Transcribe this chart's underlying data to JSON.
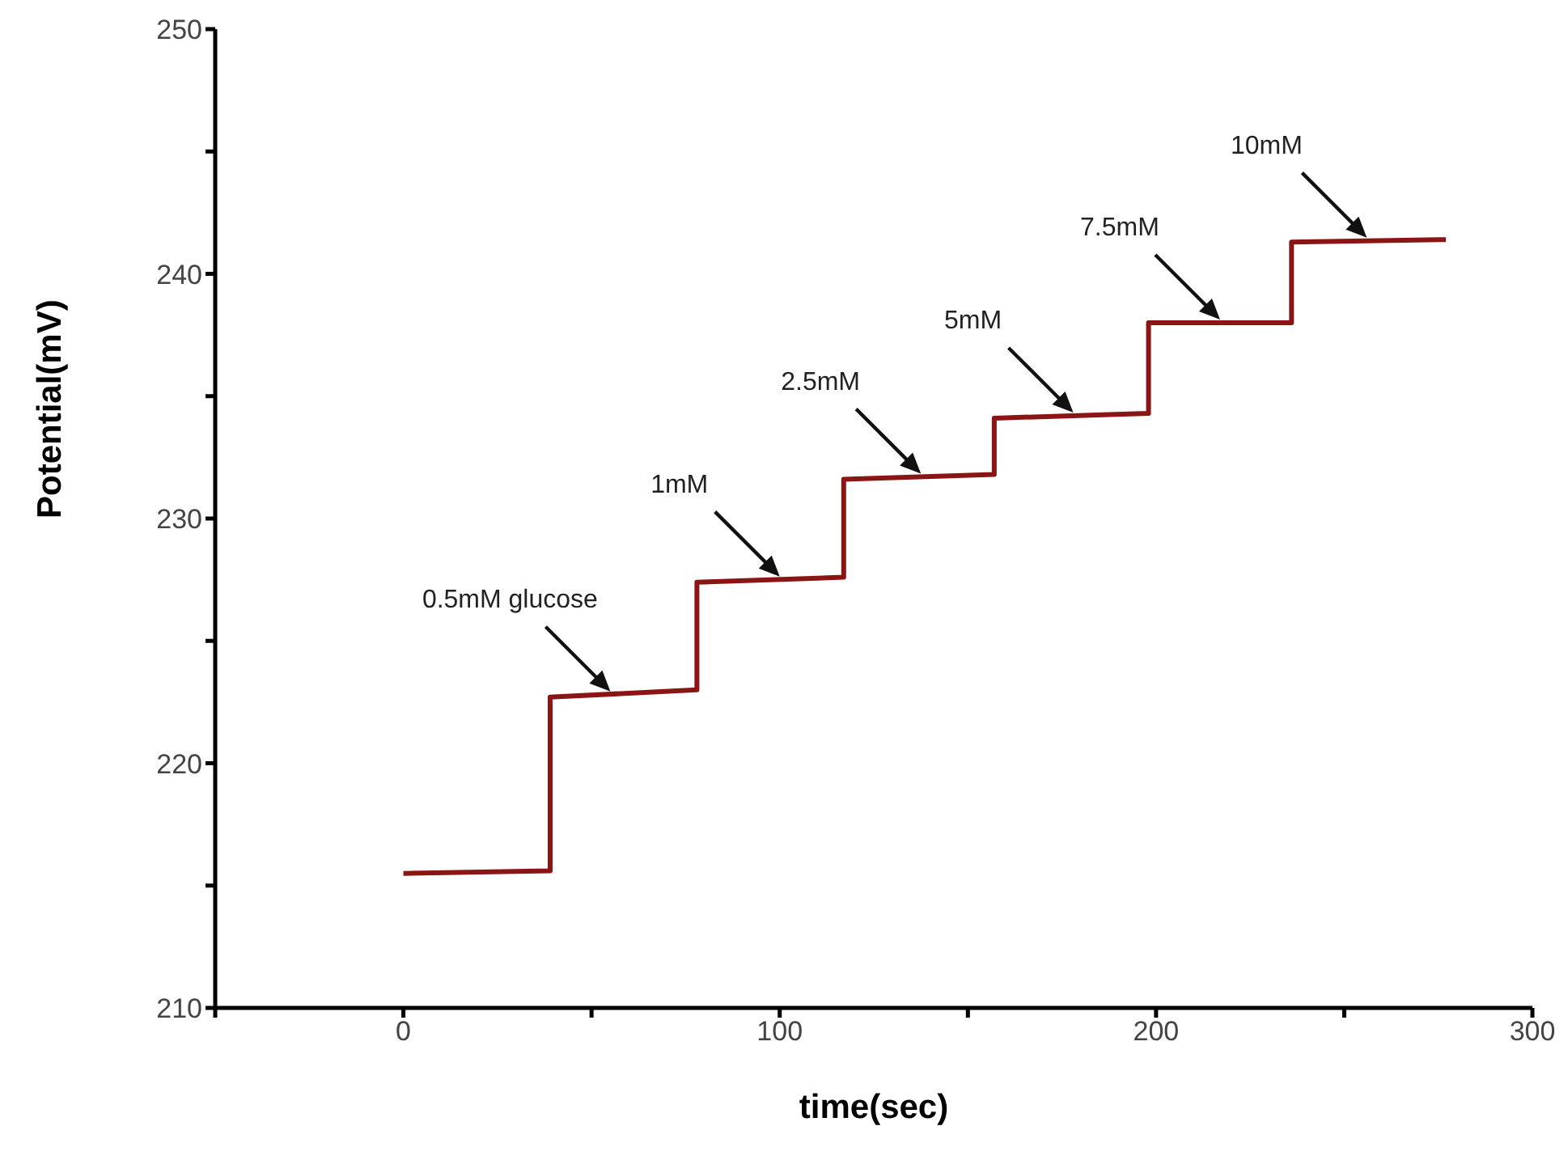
{
  "chart_data": {
    "type": "line",
    "xlabel": "time(sec)",
    "ylabel": "Potential(mV)",
    "xlim": [
      -50,
      300
    ],
    "xticks": [
      {
        "value": -50,
        "label": null
      },
      0,
      {
        "value": 50,
        "label": null
      },
      100,
      {
        "value": 150,
        "label": null
      },
      200,
      {
        "value": 250,
        "label": null
      },
      300
    ],
    "ylim": [
      210,
      250
    ],
    "yticks": [
      210,
      {
        "value": 215,
        "label": null
      },
      220,
      {
        "value": 225,
        "label": null
      },
      230,
      {
        "value": 235,
        "label": null
      },
      240,
      {
        "value": 245,
        "label": null
      },
      250
    ],
    "grid": false,
    "legend": false,
    "marker": "none",
    "line_style": "solid",
    "series": [
      {
        "color": "#8b1414",
        "x": [
          0,
          39,
          39,
          78,
          78,
          117,
          117,
          157,
          157,
          198,
          198,
          236,
          236,
          277
        ],
        "values": [
          215.5,
          215.6,
          222.7,
          223.0,
          227.4,
          227.6,
          231.6,
          231.8,
          234.1,
          234.3,
          238.0,
          238.0,
          241.3,
          241.4
        ]
      }
    ],
    "annotations": [
      {
        "text": "0.5mM glucose",
        "x": 55,
        "y": 222.8
      },
      {
        "text": "1mM",
        "x": 100,
        "y": 227.5
      },
      {
        "text": "2.5mM",
        "x": 137.5,
        "y": 231.7
      },
      {
        "text": "5mM",
        "x": 178,
        "y": 234.2
      },
      {
        "text": "7.5mM",
        "x": 217,
        "y": 238.0
      },
      {
        "text": "10mM",
        "x": 256,
        "y": 241.35
      }
    ]
  }
}
